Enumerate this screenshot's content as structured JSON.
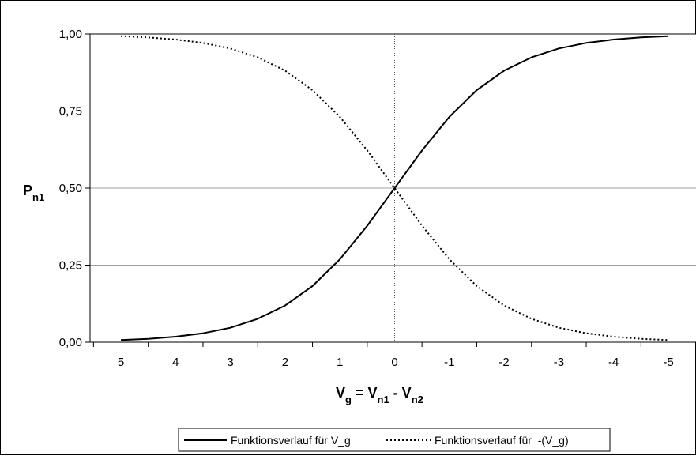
{
  "chart_data": {
    "type": "line",
    "x_ticks": [
      "5",
      "4",
      "3",
      "2",
      "1",
      "0",
      "-1",
      "-2",
      "-3",
      "-4",
      "-5"
    ],
    "y_ticks": [
      "1,00",
      "0,75",
      "0,50",
      "0,25",
      "0,00"
    ],
    "xlim": [
      5,
      -5
    ],
    "ylim": [
      0,
      1
    ],
    "grid": "horizontal",
    "reference_line_x": 0,
    "legend_placement": "bottom",
    "ylabel": {
      "main": "P",
      "sub": "n1"
    },
    "xlabel": {
      "v": "V",
      "v_sub": "g",
      "eq": " = ",
      "v1": "V",
      "v1_sub": "n1",
      "minus": " - ",
      "v2": "V",
      "v2_sub": "n2"
    },
    "series": [
      {
        "name": "Funktionsverlauf für V_g",
        "style": "solid",
        "color": "#000000",
        "x": [
          5,
          4.5,
          4,
          3.5,
          3,
          2.5,
          2,
          1.5,
          1,
          0.5,
          0,
          -0.5,
          -1,
          -1.5,
          -2,
          -2.5,
          -3,
          -3.5,
          -4,
          -4.5,
          -5
        ],
        "y": [
          0.007,
          0.011,
          0.018,
          0.029,
          0.047,
          0.076,
          0.119,
          0.182,
          0.269,
          0.378,
          0.5,
          0.622,
          0.731,
          0.818,
          0.881,
          0.924,
          0.953,
          0.971,
          0.982,
          0.989,
          0.993
        ]
      },
      {
        "name": "Funktionsverlauf für  -(V_g)",
        "style": "dotted",
        "color": "#000000",
        "x": [
          5,
          4.5,
          4,
          3.5,
          3,
          2.5,
          2,
          1.5,
          1,
          0.5,
          0,
          -0.5,
          -1,
          -1.5,
          -2,
          -2.5,
          -3,
          -3.5,
          -4,
          -4.5,
          -5
        ],
        "y": [
          0.993,
          0.989,
          0.982,
          0.971,
          0.953,
          0.924,
          0.881,
          0.818,
          0.731,
          0.622,
          0.5,
          0.378,
          0.269,
          0.182,
          0.119,
          0.076,
          0.047,
          0.029,
          0.018,
          0.011,
          0.007
        ]
      }
    ]
  }
}
